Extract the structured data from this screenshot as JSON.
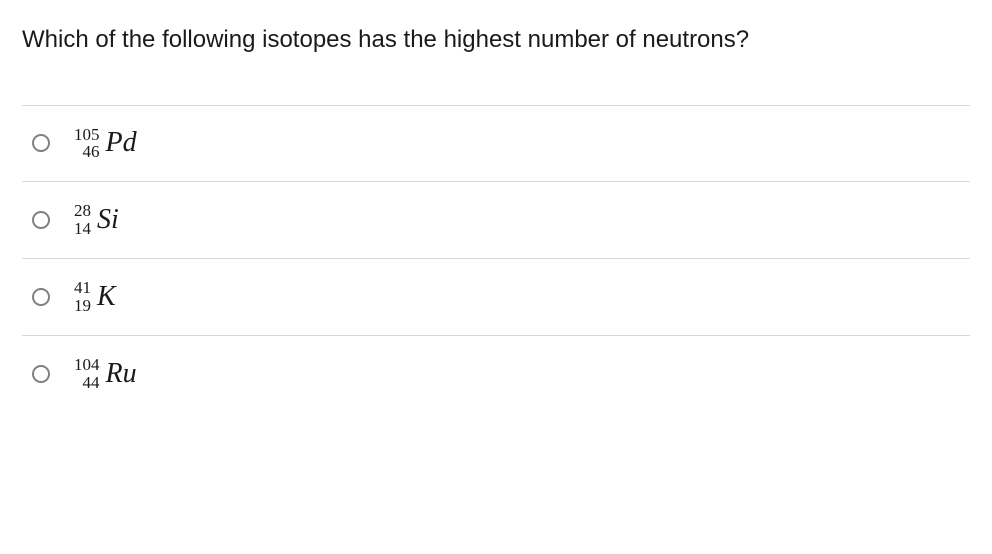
{
  "question": "Which of the following isotopes has the highest number of neutrons?",
  "options": [
    {
      "mass": "105",
      "atomic": "46",
      "symbol": "Pd"
    },
    {
      "mass": "28",
      "atomic": "14",
      "symbol": "Si"
    },
    {
      "mass": "41",
      "atomic": "19",
      "symbol": "K"
    },
    {
      "mass": "104",
      "atomic": "44",
      "symbol": "Ru"
    }
  ],
  "colors": {
    "text": "#1a1a1a",
    "border": "#d8d8d8",
    "radio_border": "#808080",
    "background": "#ffffff"
  },
  "typography": {
    "question_fontsize": 24,
    "isotope_number_fontsize": 17,
    "element_fontsize": 28
  }
}
